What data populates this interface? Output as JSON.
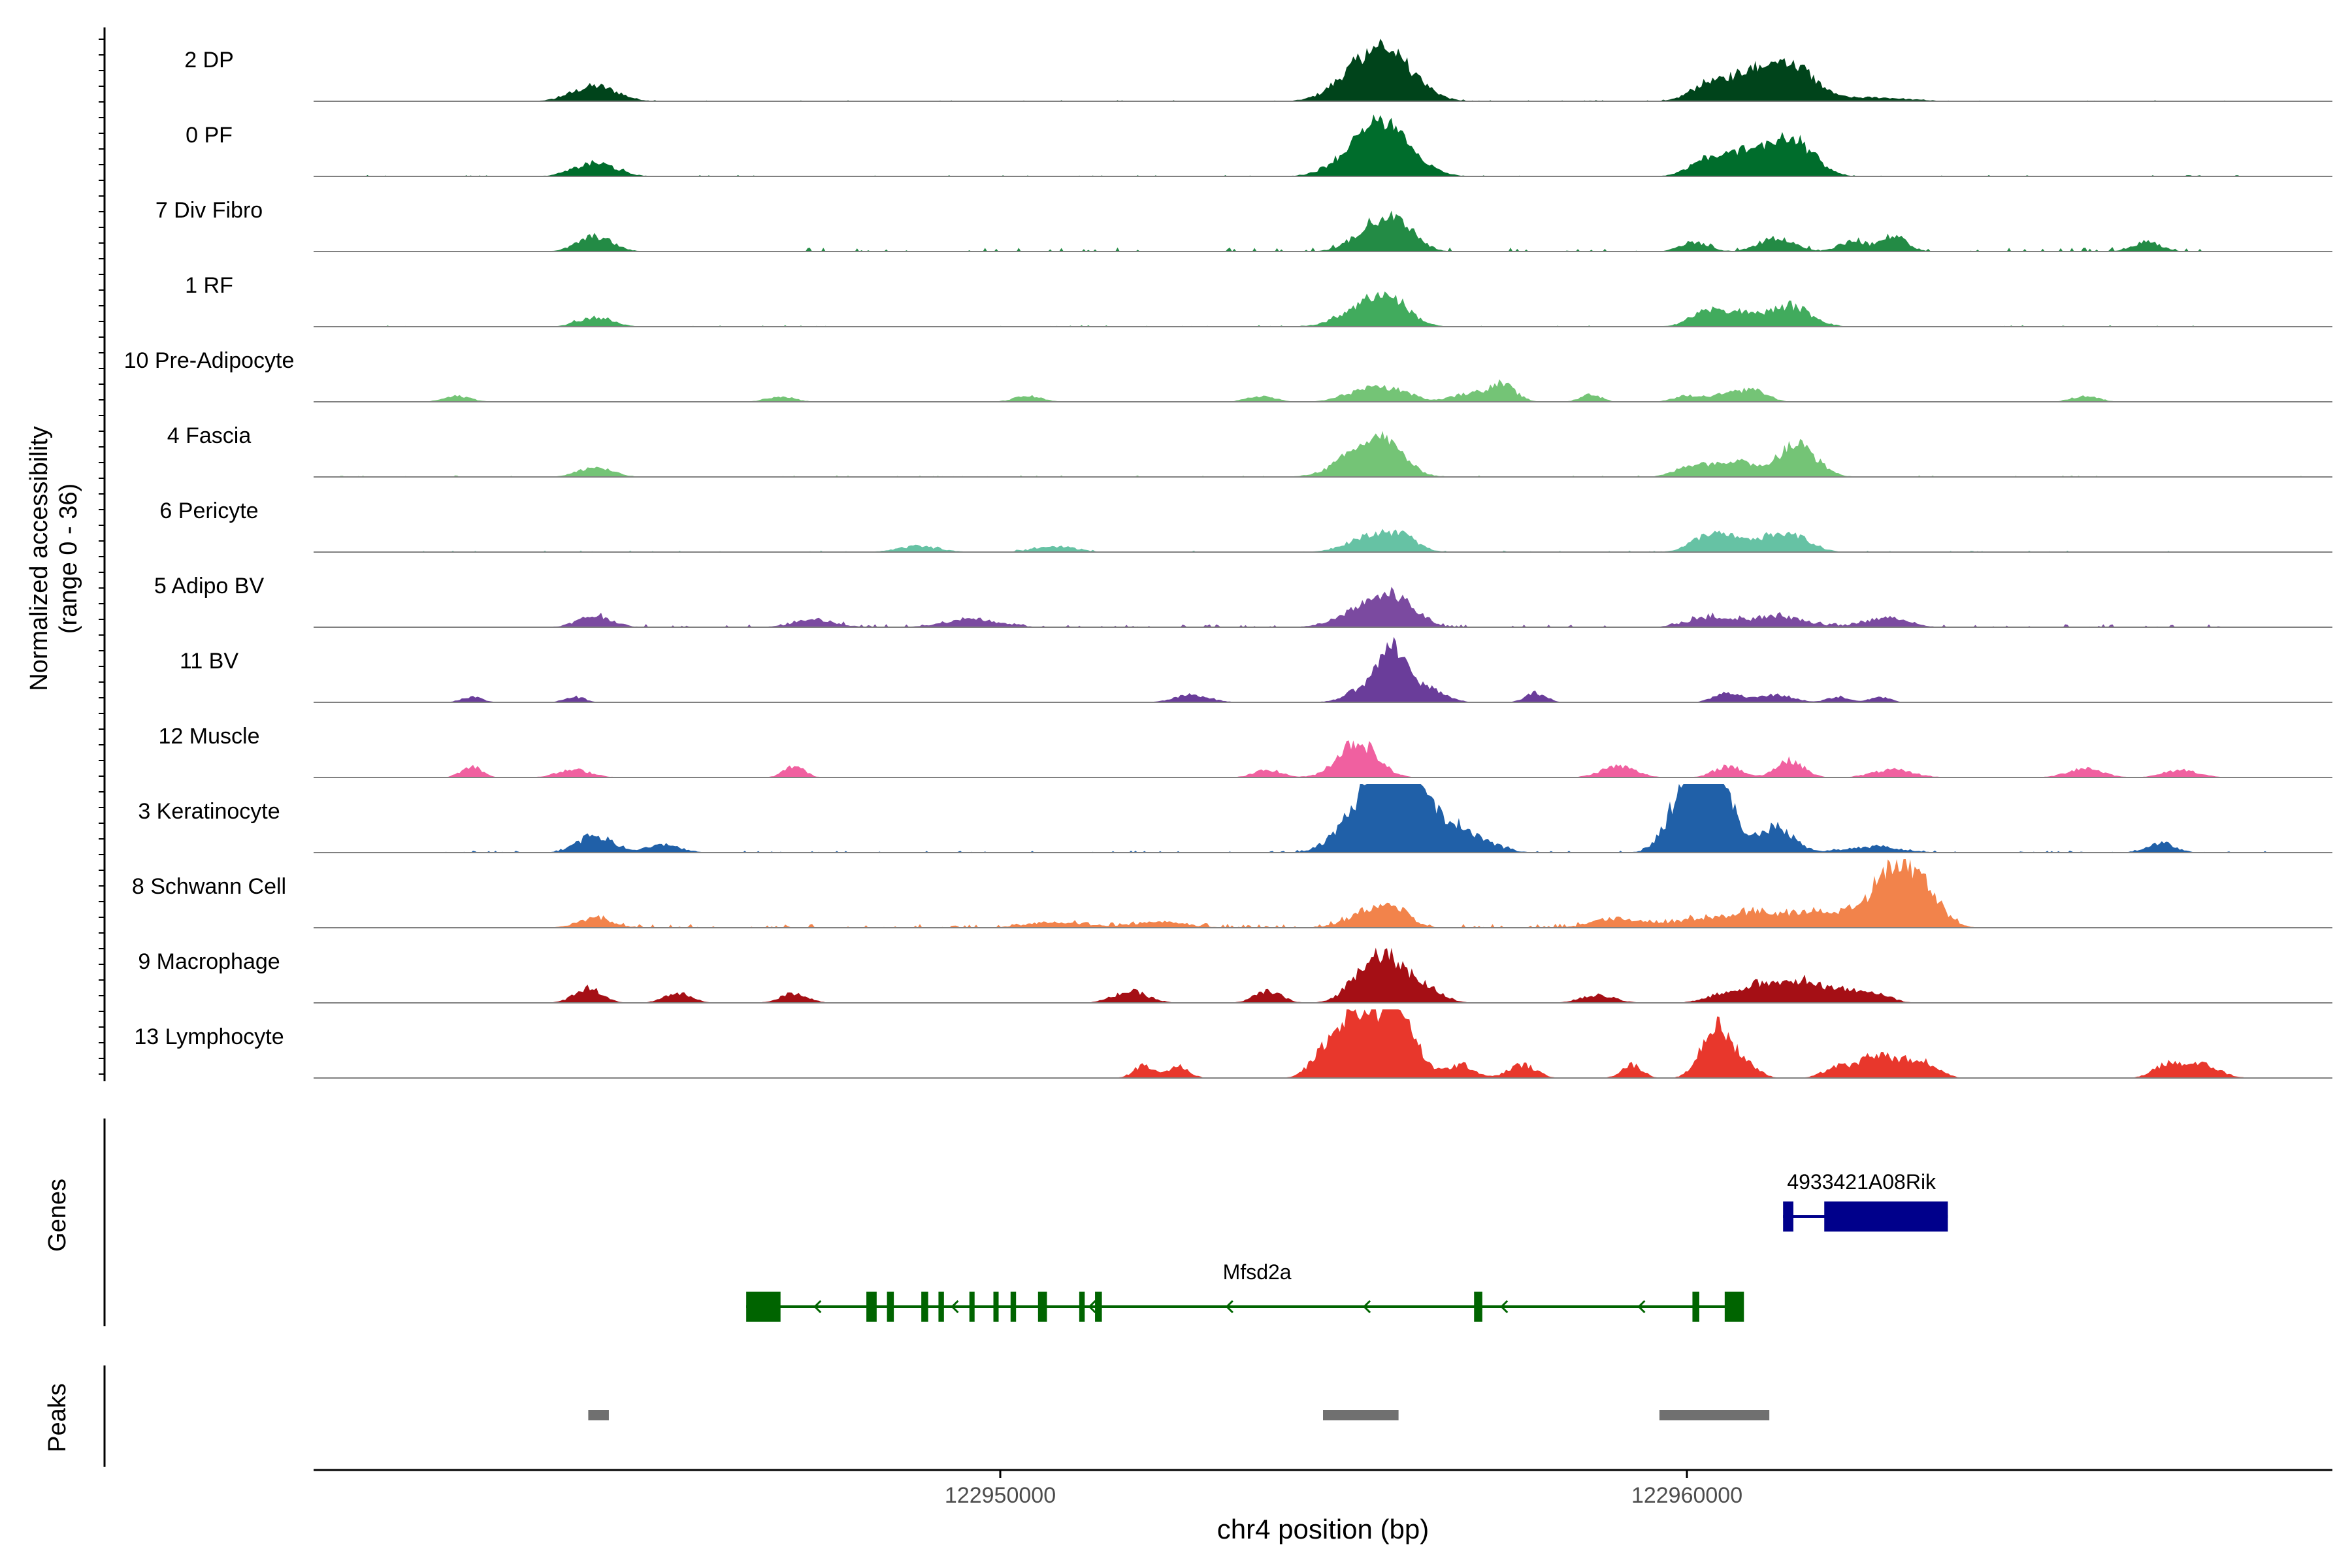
{
  "chart_data": {
    "type": "area",
    "title": "",
    "ylabel_line1": "Normalized accessibility",
    "ylabel_line2": "(range 0 - 36)",
    "y_range": [
      0,
      36
    ],
    "xlabel": "chr4 position (bp)",
    "x_range": [
      122940000,
      122969400
    ],
    "x_ticks": [
      122950000,
      122960000
    ],
    "x_tick_labels": [
      "122950000",
      "122960000"
    ],
    "tracks": [
      {
        "name": "2 DP",
        "color": "#00441b",
        "peaks": [
          [
            122944100,
            8,
            320
          ],
          [
            122955200,
            14,
            350
          ],
          [
            122955600,
            18,
            300
          ],
          [
            122956000,
            8,
            300
          ],
          [
            122960300,
            9,
            250
          ],
          [
            122960800,
            11,
            250
          ],
          [
            122961200,
            10,
            250
          ],
          [
            122961600,
            16,
            300
          ],
          [
            122962700,
            2,
            500
          ]
        ],
        "noise": 0.6,
        "spread": [
          122942000,
          122968000
        ],
        "density": 0.08
      },
      {
        "name": "0 PF",
        "color": "#006d2c",
        "peaks": [
          [
            122944100,
            7,
            300
          ],
          [
            122955200,
            13,
            350
          ],
          [
            122955600,
            20,
            280
          ],
          [
            122956000,
            7,
            300
          ],
          [
            122960300,
            9,
            260
          ],
          [
            122960800,
            10,
            250
          ],
          [
            122961200,
            9,
            250
          ],
          [
            122961600,
            17,
            280
          ]
        ],
        "noise": 0.7,
        "spread": [
          122940000,
          122969000
        ],
        "density": 0.1
      },
      {
        "name": "7 Div Fibro",
        "color": "#238b45",
        "peaks": [
          [
            122944100,
            8,
            250
          ],
          [
            122955400,
            10,
            300
          ],
          [
            122955800,
            13,
            260
          ],
          [
            122960100,
            5,
            200
          ],
          [
            122961300,
            7,
            250
          ],
          [
            122962400,
            5,
            200
          ],
          [
            122963000,
            8,
            200
          ],
          [
            122966700,
            5,
            200
          ]
        ],
        "noise": 2.2,
        "spread": [
          122947000,
          122968000
        ],
        "density": 0.14
      },
      {
        "name": "1 RF",
        "color": "#41ab5d",
        "peaks": [
          [
            122944100,
            5,
            250
          ],
          [
            122955300,
            10,
            350
          ],
          [
            122955700,
            11,
            280
          ],
          [
            122960300,
            8,
            250
          ],
          [
            122960800,
            6,
            250
          ],
          [
            122961500,
            11,
            300
          ]
        ],
        "noise": 0.8,
        "spread": [
          122941000,
          122968000
        ],
        "density": 0.07
      },
      {
        "name": "10 Pre-Adipocyte",
        "color": "#74c476",
        "peaks": [
          [
            122942100,
            3,
            200
          ],
          [
            122946800,
            3,
            200
          ],
          [
            122950400,
            3,
            200
          ],
          [
            122953800,
            3,
            200
          ],
          [
            122955300,
            6,
            300
          ],
          [
            122955800,
            5,
            250
          ],
          [
            122956800,
            4,
            250
          ],
          [
            122957300,
            9,
            200
          ],
          [
            122958600,
            4,
            150
          ],
          [
            122960000,
            3,
            200
          ],
          [
            122960600,
            4,
            250
          ],
          [
            122961000,
            5,
            200
          ],
          [
            122965800,
            3,
            200
          ]
        ],
        "noise": 0.0,
        "spread": [
          122942000,
          122968000
        ],
        "density": 0.0
      },
      {
        "name": "4 Fascia",
        "color": "#74c476",
        "peaks": [
          [
            122944100,
            5,
            250
          ],
          [
            122955200,
            10,
            350
          ],
          [
            122955600,
            15,
            300
          ],
          [
            122960100,
            6,
            250
          ],
          [
            122960700,
            8,
            280
          ],
          [
            122961600,
            17,
            280
          ]
        ],
        "noise": 0.8,
        "spread": [
          122940000,
          122969000
        ],
        "density": 0.1
      },
      {
        "name": "6 Pericyte",
        "color": "#66c2a4",
        "peaks": [
          [
            122948800,
            3,
            300
          ],
          [
            122950800,
            3,
            300
          ],
          [
            122955300,
            7,
            300
          ],
          [
            122955800,
            9,
            250
          ],
          [
            122960300,
            8,
            250
          ],
          [
            122960700,
            5,
            250
          ],
          [
            122961200,
            6,
            250
          ],
          [
            122961600,
            7,
            250
          ]
        ],
        "noise": 0.8,
        "spread": [
          122941500,
          122968500
        ],
        "density": 0.08
      },
      {
        "name": "5 Adipo BV",
        "color": "#7b4aa0",
        "peaks": [
          [
            122944100,
            6,
            250
          ],
          [
            122947300,
            4,
            300
          ],
          [
            122949600,
            4,
            400
          ],
          [
            122955300,
            10,
            350
          ],
          [
            122955800,
            13,
            280
          ],
          [
            122960300,
            5,
            300
          ],
          [
            122961300,
            6,
            400
          ],
          [
            122962900,
            5,
            300
          ]
        ],
        "noise": 1.6,
        "spread": [
          122944000,
          122968000
        ],
        "density": 0.2
      },
      {
        "name": "11 BV",
        "color": "#6a3d9a",
        "peaks": [
          [
            122942300,
            3,
            150
          ],
          [
            122943800,
            3,
            150
          ],
          [
            122952800,
            4,
            250
          ],
          [
            122955300,
            7,
            250
          ],
          [
            122955700,
            26,
            200
          ],
          [
            122956200,
            8,
            250
          ],
          [
            122957800,
            5,
            150
          ],
          [
            122960600,
            5,
            200
          ],
          [
            122961300,
            4,
            250
          ],
          [
            122962200,
            3,
            150
          ],
          [
            122962800,
            3,
            150
          ]
        ],
        "noise": 0.0,
        "spread": [
          122942000,
          122968000
        ],
        "density": 0.0
      },
      {
        "name": "12 Muscle",
        "color": "#f060a0",
        "peaks": [
          [
            122942300,
            6,
            150
          ],
          [
            122943800,
            4,
            250
          ],
          [
            122947000,
            6,
            150
          ],
          [
            122953900,
            4,
            200
          ],
          [
            122955200,
            19,
            280
          ],
          [
            122959000,
            6,
            250
          ],
          [
            122960600,
            6,
            200
          ],
          [
            122961500,
            9,
            200
          ],
          [
            122963000,
            4,
            300
          ],
          [
            122965800,
            5,
            250
          ],
          [
            122967200,
            4,
            250
          ]
        ],
        "noise": 0.0,
        "spread": [
          122942000,
          122968000
        ],
        "density": 0.0
      },
      {
        "name": "3 Keratinocyte",
        "color": "#2060a8",
        "peaks": [
          [
            122944100,
            9,
            250
          ],
          [
            122945100,
            4,
            250
          ],
          [
            122955200,
            18,
            320
          ],
          [
            122955600,
            38,
            260
          ],
          [
            122956000,
            24,
            280
          ],
          [
            122956600,
            14,
            400
          ],
          [
            122960000,
            32,
            260
          ],
          [
            122960400,
            40,
            260
          ],
          [
            122961300,
            13,
            250
          ],
          [
            122962700,
            3,
            400
          ],
          [
            122966900,
            5,
            200
          ]
        ],
        "noise": 1.0,
        "spread": [
          122941500,
          122968500
        ],
        "density": 0.16
      },
      {
        "name": "8 Schwann Cell",
        "color": "#f2834b",
        "peaks": [
          [
            122944100,
            5,
            250
          ],
          [
            122950800,
            3,
            400
          ],
          [
            122952300,
            3,
            400
          ],
          [
            122955300,
            6,
            300
          ],
          [
            122955700,
            10,
            250
          ],
          [
            122959000,
            5,
            350
          ],
          [
            122960200,
            5,
            350
          ],
          [
            122961000,
            8,
            300
          ],
          [
            122961700,
            6,
            300
          ],
          [
            122962200,
            6,
            300
          ],
          [
            122962700,
            10,
            250
          ],
          [
            122963100,
            30,
            250
          ],
          [
            122963500,
            14,
            250
          ]
        ],
        "noise": 2.0,
        "spread": [
          122944000,
          122964000
        ],
        "density": 0.3
      },
      {
        "name": "9 Macrophage",
        "color": "#a50f15",
        "peaks": [
          [
            122944000,
            8,
            200
          ],
          [
            122945300,
            5,
            200
          ],
          [
            122947000,
            5,
            200
          ],
          [
            122951900,
            6,
            250
          ],
          [
            122953900,
            6,
            200
          ],
          [
            122955300,
            15,
            250
          ],
          [
            122955700,
            19,
            250
          ],
          [
            122956200,
            7,
            250
          ],
          [
            122958700,
            4,
            250
          ],
          [
            122960500,
            4,
            250
          ],
          [
            122961100,
            10,
            280
          ],
          [
            122961700,
            11,
            250
          ],
          [
            122962300,
            7,
            250
          ],
          [
            122962800,
            4,
            200
          ]
        ],
        "noise": 0.0,
        "spread": [
          122942000,
          122968000
        ],
        "density": 0.0
      },
      {
        "name": "13 Lymphocyte",
        "color": "#e8372c",
        "peaks": [
          [
            122952100,
            7,
            150
          ],
          [
            122952600,
            6,
            150
          ],
          [
            122954700,
            12,
            200
          ],
          [
            122955000,
            18,
            180
          ],
          [
            122955300,
            28,
            200
          ],
          [
            122955700,
            34,
            180
          ],
          [
            122956000,
            16,
            200
          ],
          [
            122956700,
            7,
            200
          ],
          [
            122957600,
            7,
            200
          ],
          [
            122959200,
            7,
            150
          ],
          [
            122960400,
            26,
            200
          ],
          [
            122960800,
            9,
            200
          ],
          [
            122962200,
            6,
            200
          ],
          [
            122962700,
            10,
            200
          ],
          [
            122963100,
            8,
            250
          ],
          [
            122963500,
            6,
            200
          ],
          [
            122967000,
            7,
            200
          ],
          [
            122967500,
            7,
            250
          ]
        ],
        "noise": 0.0,
        "spread": [
          122952000,
          122968000
        ],
        "density": 0.0
      }
    ],
    "genes_label": "Genes",
    "genes": [
      {
        "name": "4933421A08Rik",
        "color": "#00008b",
        "start": 122961400,
        "end": 122963800,
        "strand": "+",
        "exons": [
          [
            122961400,
            122961550
          ],
          [
            122962000,
            122963800
          ]
        ]
      },
      {
        "name": "Mfsd2a",
        "color": "#006400",
        "start": 122946300,
        "end": 122960800,
        "strand": "-",
        "exons": [
          [
            122946300,
            122946800
          ],
          [
            122948050,
            122948200
          ],
          [
            122948350,
            122948450
          ],
          [
            122948850,
            122948950
          ],
          [
            122949100,
            122949180
          ],
          [
            122949550,
            122949620
          ],
          [
            122949900,
            122949970
          ],
          [
            122950150,
            122950230
          ],
          [
            122950550,
            122950680
          ],
          [
            122951150,
            122951230
          ],
          [
            122951380,
            122951480
          ],
          [
            122956900,
            122957020
          ],
          [
            122960080,
            122960180
          ],
          [
            122960700,
            122960800
          ],
          [
            122960550,
            122960830
          ]
        ]
      }
    ],
    "peaks_label": "Peaks",
    "peak_regions": [
      [
        122944000,
        122944300
      ],
      [
        122954700,
        122955800
      ],
      [
        122959600,
        122961200
      ]
    ],
    "peak_color": "#707070"
  }
}
